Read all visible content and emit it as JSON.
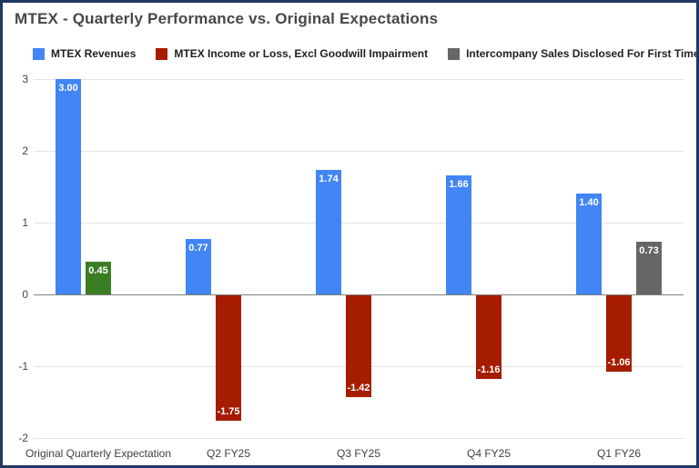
{
  "chart_data": {
    "type": "bar",
    "title": "MTEX - Quarterly Performance vs. Original Expectations",
    "xlabel": "",
    "ylabel": "",
    "ylim": [
      -2,
      3
    ],
    "yticks": [
      3,
      2,
      1,
      0,
      -1,
      -2
    ],
    "grid": true,
    "legend_position": "top",
    "categories": [
      "Original Quarterly Expectation",
      "Q2 FY25",
      "Q3 FY25",
      "Q4 FY25",
      "Q1 FY26"
    ],
    "series": [
      {
        "name": "MTEX Revenues",
        "color": "#4285F4",
        "values": [
          3.0,
          0.77,
          1.74,
          1.66,
          1.4
        ],
        "labels": [
          "3.00",
          "0.77",
          "1.74",
          "1.66",
          "1.40"
        ]
      },
      {
        "name": "MTEX Income or Loss, Excl Goodwill Impairment",
        "color": "#A61C00",
        "values": [
          0.45,
          -1.75,
          -1.42,
          -1.16,
          -1.06
        ],
        "labels": [
          "0.45",
          "-1.75",
          "-1.42",
          "-1.16",
          "-1.06"
        ],
        "point_colors": [
          "#3B7D23",
          null,
          null,
          null,
          null
        ]
      },
      {
        "name": "Intercompany Sales Disclosed For First Time - ?????",
        "color": "#666666",
        "values": [
          null,
          null,
          null,
          null,
          0.73
        ],
        "labels": [
          null,
          null,
          null,
          null,
          "0.73"
        ]
      }
    ]
  }
}
